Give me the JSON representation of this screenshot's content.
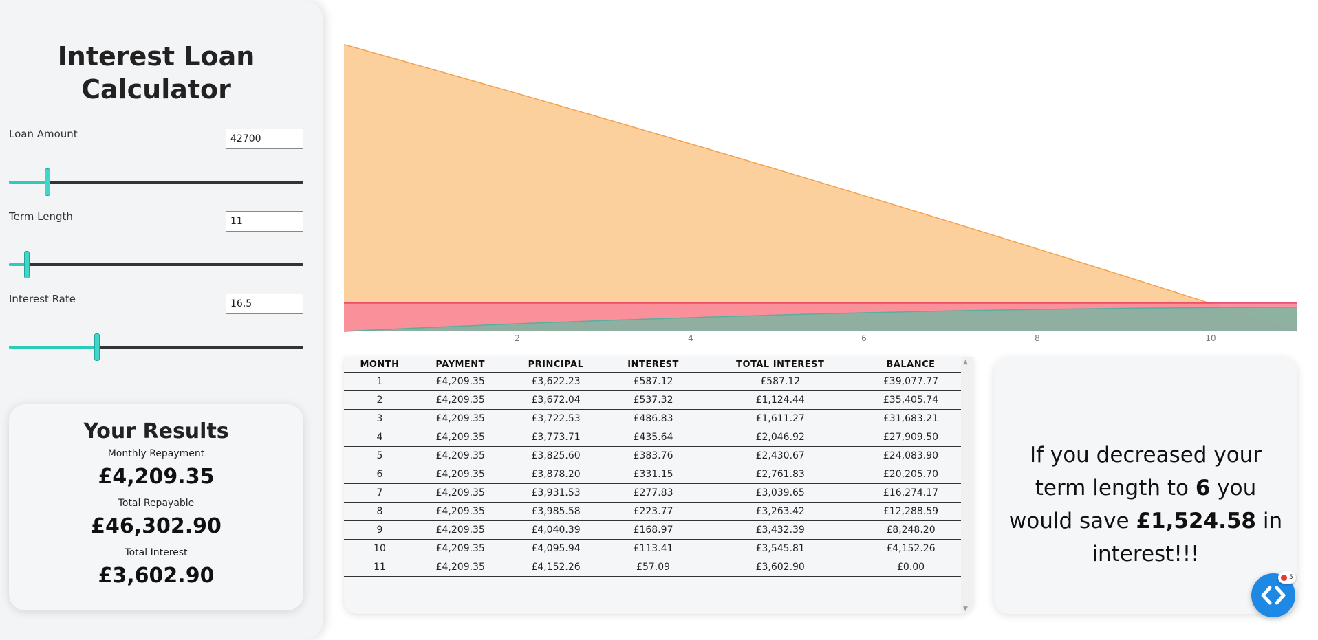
{
  "calculator": {
    "title_line1": "Interest Loan",
    "title_line2": "Calculator",
    "loan_amount": {
      "label": "Loan Amount",
      "value": "42700",
      "slider_fraction": 0.13
    },
    "term_length": {
      "label": "Term Length",
      "value": "11",
      "slider_fraction": 0.06
    },
    "interest_rate": {
      "label": "Interest Rate",
      "value": "16.5",
      "slider_fraction": 0.3
    }
  },
  "results": {
    "title": "Your Results",
    "monthly_label": "Monthly Repayment",
    "monthly_value": "£4,209.35",
    "repayable_label": "Total Repayable",
    "repayable_value": "£46,302.90",
    "interest_label": "Total Interest",
    "interest_value": "£3,602.90"
  },
  "chart_data": {
    "type": "area",
    "x": [
      0,
      1,
      2,
      3,
      4,
      5,
      6,
      7,
      8,
      9,
      10,
      11
    ],
    "x_ticks": [
      "2",
      "4",
      "6",
      "8",
      "10"
    ],
    "xlim": [
      0,
      11
    ],
    "ylim": [
      0,
      44000
    ],
    "series": [
      {
        "color": "#fcd09d",
        "stroke": "#f3a24f",
        "values": [
          42700,
          39077.77,
          35405.74,
          31683.21,
          27909.5,
          24083.9,
          20205.7,
          16274.17,
          12288.59,
          8248.2,
          4152.26,
          0.0
        ]
      },
      {
        "color": "#f98a9a",
        "stroke": "#ea3e63",
        "values": [
          4209.35,
          4209.35,
          4209.35,
          4209.35,
          4209.35,
          4209.35,
          4209.35,
          4209.35,
          4209.35,
          4209.35,
          4209.35,
          4209.35
        ]
      },
      {
        "color": "#86b3a2",
        "stroke": "#5aaea0",
        "values": [
          0,
          587.12,
          1124.44,
          1611.27,
          2046.92,
          2430.67,
          2761.83,
          3039.65,
          3263.42,
          3432.39,
          3545.81,
          3602.9
        ]
      }
    ]
  },
  "table": {
    "headers": [
      "MONTH",
      "PAYMENT",
      "PRINCIPAL",
      "INTEREST",
      "TOTAL INTEREST",
      "BALANCE"
    ],
    "rows": [
      [
        "1",
        "£4,209.35",
        "£3,622.23",
        "£587.12",
        "£587.12",
        "£39,077.77"
      ],
      [
        "2",
        "£4,209.35",
        "£3,672.04",
        "£537.32",
        "£1,124.44",
        "£35,405.74"
      ],
      [
        "3",
        "£4,209.35",
        "£3,722.53",
        "£486.83",
        "£1,611.27",
        "£31,683.21"
      ],
      [
        "4",
        "£4,209.35",
        "£3,773.71",
        "£435.64",
        "£2,046.92",
        "£27,909.50"
      ],
      [
        "5",
        "£4,209.35",
        "£3,825.60",
        "£383.76",
        "£2,430.67",
        "£24,083.90"
      ],
      [
        "6",
        "£4,209.35",
        "£3,878.20",
        "£331.15",
        "£2,761.83",
        "£20,205.70"
      ],
      [
        "7",
        "£4,209.35",
        "£3,931.53",
        "£277.83",
        "£3,039.65",
        "£16,274.17"
      ],
      [
        "8",
        "£4,209.35",
        "£3,985.58",
        "£223.77",
        "£3,263.42",
        "£12,288.59"
      ],
      [
        "9",
        "£4,209.35",
        "£4,040.39",
        "£168.97",
        "£3,432.39",
        "£8,248.20"
      ],
      [
        "10",
        "£4,209.35",
        "£4,095.94",
        "£113.41",
        "£3,545.81",
        "£4,152.26"
      ],
      [
        "11",
        "£4,209.35",
        "£4,152.26",
        "£57.09",
        "£3,602.90",
        "£0.00"
      ]
    ]
  },
  "savings": {
    "part1": "If you decreased your term length to ",
    "term": "6",
    "part2": " you would save ",
    "amount": "£1,524.58",
    "part3": " in interest!!!"
  },
  "fab": {
    "badge_count": "5",
    "icon": "code-brackets-icon"
  }
}
